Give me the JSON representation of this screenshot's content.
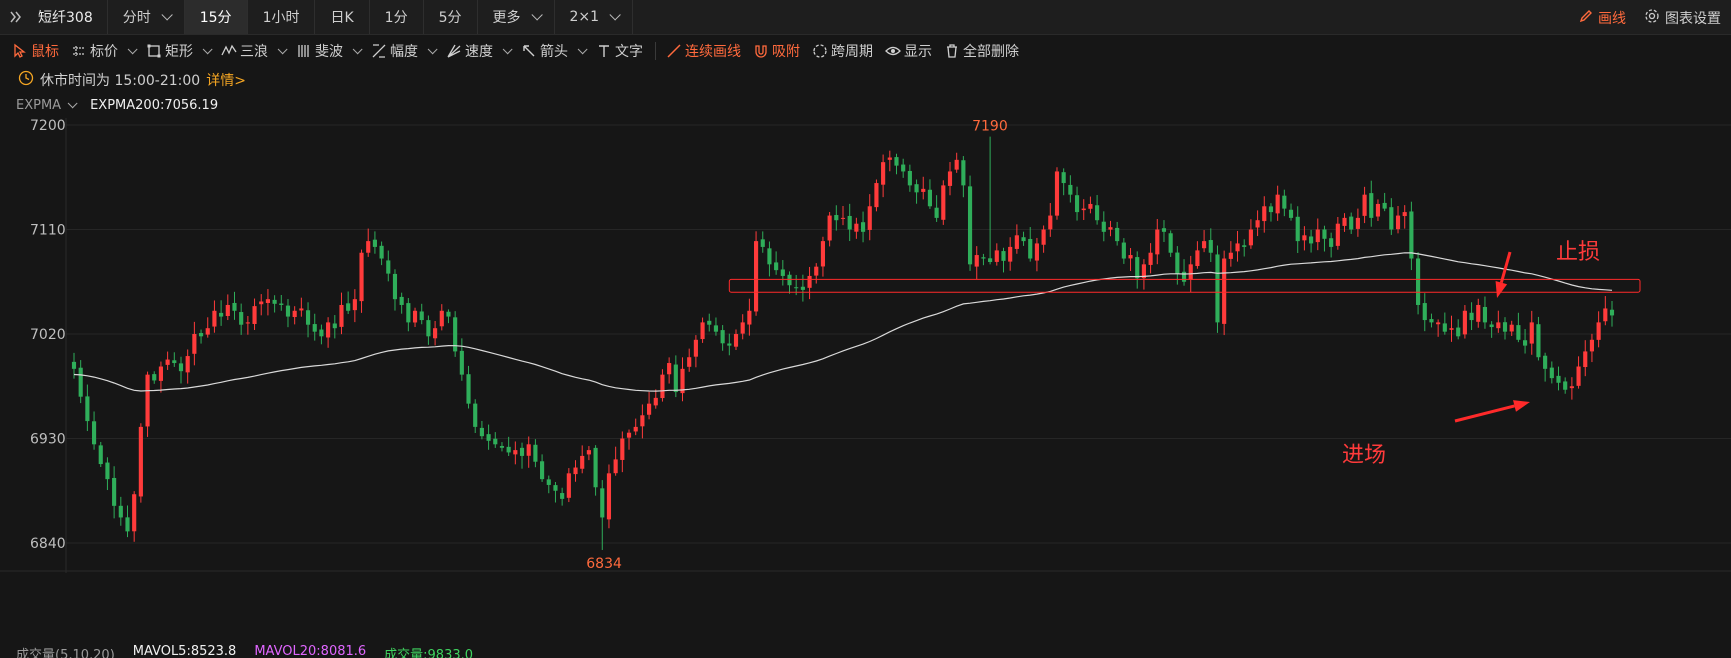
{
  "topbar": {
    "symbol": "短纤308",
    "tabs": [
      {
        "label": "分时",
        "dropdown": true,
        "active": false
      },
      {
        "label": "15分",
        "dropdown": false,
        "active": true
      },
      {
        "label": "1小时",
        "dropdown": false,
        "active": false
      },
      {
        "label": "日K",
        "dropdown": false,
        "active": false
      },
      {
        "label": "1分",
        "dropdown": false,
        "active": false
      },
      {
        "label": "5分",
        "dropdown": false,
        "active": false
      },
      {
        "label": "更多",
        "dropdown": true,
        "active": false
      },
      {
        "label": "2×1",
        "dropdown": true,
        "active": false
      }
    ],
    "draw_label": "画线",
    "settings_label": "图表设置"
  },
  "toolbar": {
    "items": [
      {
        "label": "鼠标",
        "icon": "cursor-icon",
        "dropdown": false,
        "active": true
      },
      {
        "label": "标价",
        "icon": "price-label-icon",
        "dropdown": true,
        "active": false
      },
      {
        "label": "矩形",
        "icon": "rectangle-icon",
        "dropdown": true,
        "active": false
      },
      {
        "label": "三浪",
        "icon": "wave-icon",
        "dropdown": true,
        "active": false
      },
      {
        "label": "斐波",
        "icon": "fibonacci-icon",
        "dropdown": true,
        "active": false
      },
      {
        "label": "幅度",
        "icon": "range-icon",
        "dropdown": true,
        "active": false
      },
      {
        "label": "速度",
        "icon": "speed-icon",
        "dropdown": true,
        "active": false
      },
      {
        "label": "箭头",
        "icon": "arrow-icon",
        "dropdown": true,
        "active": false
      },
      {
        "label": "文字",
        "icon": "text-icon",
        "dropdown": false,
        "active": false
      }
    ],
    "actions": [
      {
        "label": "连续画线",
        "icon": "continuous-draw-icon",
        "active": true
      },
      {
        "label": "吸附",
        "icon": "magnet-icon",
        "active": true
      },
      {
        "label": "跨周期",
        "icon": "cross-period-icon",
        "active": false
      },
      {
        "label": "显示",
        "icon": "eye-icon",
        "active": false
      },
      {
        "label": "全部删除",
        "icon": "trash-icon",
        "active": false
      }
    ]
  },
  "notice": {
    "text": "休市时间为 15:00-21:00",
    "link": "详情>"
  },
  "indicator": {
    "name": "EXPMA",
    "value": "EXPMA200:7056.19"
  },
  "volume_legend": {
    "label": "成交量(5,10,20)",
    "mavol5": "MAVOL5:8523.8",
    "mavol20": "MAVOL20:8081.6",
    "volume": "成交量:9833.0"
  },
  "colors": {
    "up": "#ff3b3b",
    "down": "#2fae5a",
    "ema": "#d9d9d9",
    "accent": "#ff6a3d"
  },
  "chart_data": {
    "type": "candlestick",
    "y_ticks": [
      7200,
      7110,
      7020,
      6930,
      6840
    ],
    "ylim": [
      6820,
      7210
    ],
    "grid": true,
    "high_label": "7190",
    "low_label": "6834",
    "high_value": 7190,
    "low_value": 6834,
    "annotations": {
      "stop_loss": "止损",
      "entry": "进场"
    },
    "zone": {
      "top": 7067,
      "bottom": 7056
    },
    "closes": [
      6990,
      6966,
      6945,
      6925,
      6908,
      6895,
      6872,
      6862,
      6850,
      6882,
      6940,
      6985,
      6980,
      6992,
      6998,
      6995,
      6988,
      7001,
      7020,
      7018,
      7025,
      7040,
      7035,
      7045,
      7040,
      7028,
      7030,
      7044,
      7048,
      7050,
      7046,
      7045,
      7035,
      7040,
      7042,
      7028,
      7022,
      7018,
      7030,
      7025,
      7045,
      7040,
      7050,
      7090,
      7100,
      7095,
      7085,
      7072,
      7050,
      7045,
      7030,
      7040,
      7032,
      7018,
      7025,
      7040,
      7035,
      7005,
      6985,
      6960,
      6940,
      6932,
      6928,
      6925,
      6922,
      6918,
      6920,
      6915,
      6925,
      6910,
      6895,
      6890,
      6885,
      6878,
      6900,
      6905,
      6915,
      6920,
      6888,
      6862,
      6900,
      6912,
      6930,
      6935,
      6940,
      6950,
      6960,
      6965,
      6985,
      6995,
      6970,
      6990,
      7000,
      7015,
      7030,
      7028,
      7022,
      7012,
      7010,
      7020,
      7030,
      7040,
      7100,
      7095,
      7080,
      7075,
      7070,
      7062,
      7060,
      7058,
      7070,
      7078,
      7100,
      7122,
      7118,
      7120,
      7110,
      7115,
      7108,
      7130,
      7150,
      7168,
      7172,
      7165,
      7160,
      7148,
      7142,
      7145,
      7130,
      7120,
      7148,
      7160,
      7170,
      7148,
      7080,
      7088,
      7085,
      7082,
      7092,
      7083,
      7095,
      7105,
      7100,
      7085,
      7098,
      7110,
      7122,
      7160,
      7150,
      7140,
      7125,
      7128,
      7132,
      7118,
      7108,
      7112,
      7100,
      7085,
      7088,
      7068,
      7080,
      7090,
      7110,
      7108,
      7090,
      7072,
      7065,
      7080,
      7092,
      7100,
      7090,
      7030,
      7085,
      7090,
      7098,
      7095,
      7110,
      7118,
      7130,
      7125,
      7140,
      7128,
      7120,
      7100,
      7105,
      7098,
      7110,
      7102,
      7095,
      7115,
      7120,
      7110,
      7120,
      7140,
      7120,
      7132,
      7128,
      7110,
      7122,
      7125,
      7085,
      7045,
      7032,
      7030,
      7030,
      7022,
      7025,
      7018,
      7040,
      7032,
      7045,
      7030,
      7026,
      7030,
      7022,
      7028,
      7015,
      7010,
      7030,
      7000,
      6990,
      6982,
      6978,
      6972,
      6975,
      6992,
      7005,
      7015,
      7030,
      7042,
      7036
    ]
  }
}
